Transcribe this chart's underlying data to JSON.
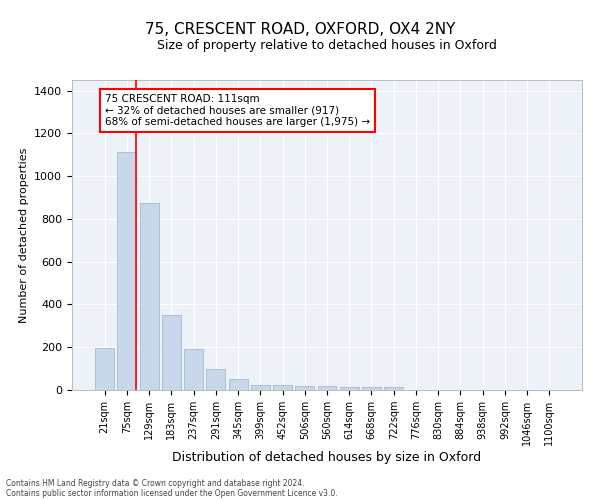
{
  "title1": "75, CRESCENT ROAD, OXFORD, OX4 2NY",
  "title2": "Size of property relative to detached houses in Oxford",
  "xlabel": "Distribution of detached houses by size in Oxford",
  "ylabel": "Number of detached properties",
  "bar_color": "#c8d8ea",
  "bar_edge_color": "#a8c0d8",
  "bin_labels": [
    "21sqm",
    "75sqm",
    "129sqm",
    "183sqm",
    "237sqm",
    "291sqm",
    "345sqm",
    "399sqm",
    "452sqm",
    "506sqm",
    "560sqm",
    "614sqm",
    "668sqm",
    "722sqm",
    "776sqm",
    "830sqm",
    "884sqm",
    "938sqm",
    "992sqm",
    "1046sqm",
    "1100sqm"
  ],
  "bar_heights": [
    195,
    1115,
    875,
    350,
    190,
    100,
    50,
    25,
    25,
    18,
    18,
    12,
    12,
    12,
    0,
    0,
    0,
    0,
    0,
    0,
    0
  ],
  "ylim": [
    0,
    1450
  ],
  "yticks": [
    0,
    200,
    400,
    600,
    800,
    1000,
    1200,
    1400
  ],
  "red_line_x": 1.43,
  "annotation_text": "75 CRESCENT ROAD: 111sqm\n← 32% of detached houses are smaller (917)\n68% of semi-detached houses are larger (1,975) →",
  "annotation_box_color": "white",
  "annotation_box_edge_color": "red",
  "red_line_color": "red",
  "footnote1": "Contains HM Land Registry data © Crown copyright and database right 2024.",
  "footnote2": "Contains public sector information licensed under the Open Government Licence v3.0.",
  "background_color": "#edf2f8",
  "grid_color": "white",
  "title1_fontsize": 11,
  "title2_fontsize": 9,
  "xlabel_fontsize": 9,
  "ylabel_fontsize": 8,
  "annot_fontsize": 7.5,
  "tick_fontsize": 7
}
